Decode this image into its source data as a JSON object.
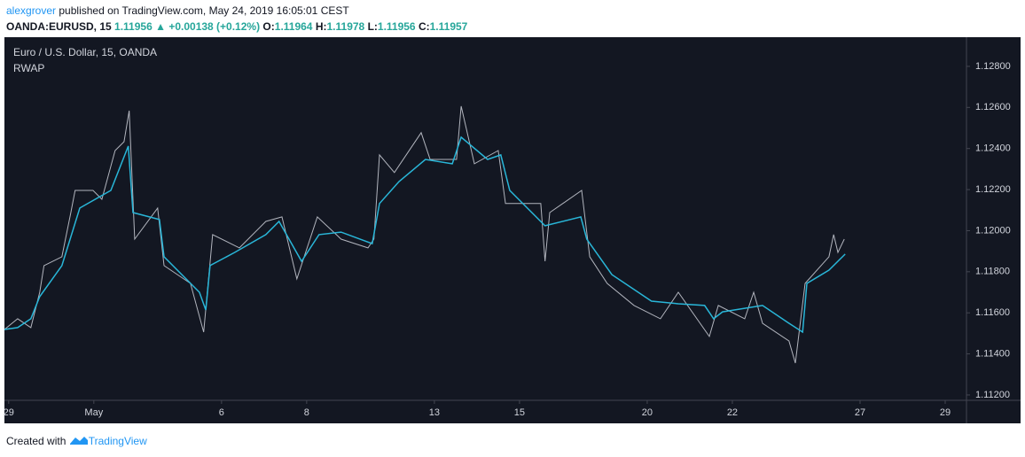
{
  "header": {
    "author": "alexgrover",
    "published": "published on TradingView.com, May 24, 2019 16:05:01 CEST"
  },
  "quote": {
    "symbol": "OANDA:EURUSD, 15",
    "last": "1.11956",
    "change": "+0.00138 (+0.12%)",
    "ohlc": [
      {
        "label": "O:",
        "value": "1.11964"
      },
      {
        "label": "H:",
        "value": "1.11978"
      },
      {
        "label": "L:",
        "value": "1.11956"
      },
      {
        "label": "C:",
        "value": "1.11957"
      }
    ]
  },
  "footer": {
    "created": "Created with",
    "brand": "TradingView"
  },
  "chart_data": {
    "type": "line",
    "title": "Euro / U.S. Dollar, 15, OANDA",
    "xlim": [
      -0.1,
      22.5
    ],
    "ylim": [
      1.11174,
      1.12942
    ],
    "xticks": [
      {
        "value": 0,
        "label": "29"
      },
      {
        "value": 2,
        "label": "May"
      },
      {
        "value": 5,
        "label": "6"
      },
      {
        "value": 7,
        "label": "8"
      },
      {
        "value": 10,
        "label": "13"
      },
      {
        "value": 12,
        "label": "15"
      },
      {
        "value": 15,
        "label": "20"
      },
      {
        "value": 17,
        "label": "22"
      },
      {
        "value": 20,
        "label": "27"
      },
      {
        "value": 22,
        "label": "29"
      }
    ],
    "yticks": [
      {
        "value": 1.112,
        "label": "1.11200"
      },
      {
        "value": 1.114,
        "label": "1.11400"
      },
      {
        "value": 1.116,
        "label": "1.11600"
      },
      {
        "value": 1.118,
        "label": "1.11800"
      },
      {
        "value": 1.12,
        "label": "1.12000"
      },
      {
        "value": 1.122,
        "label": "1.12200"
      },
      {
        "value": 1.124,
        "label": "1.12400"
      },
      {
        "value": 1.126,
        "label": "1.12600"
      },
      {
        "value": 1.128,
        "label": "1.12800"
      }
    ],
    "series": [
      {
        "color": "#b2b5be",
        "x": [
          -0.1,
          0.21,
          0.52,
          0.73,
          0.83,
          1.25,
          1.46,
          1.56,
          1.98,
          2.19,
          2.5,
          2.71,
          2.83,
          2.96,
          3.5,
          3.65,
          4.27,
          4.58,
          4.79,
          5.42,
          6.04,
          6.42,
          6.77,
          7.25,
          7.81,
          8.44,
          8.58,
          8.71,
          9.06,
          9.69,
          9.9,
          10.52,
          10.63,
          10.94,
          11.5,
          11.67,
          12.5,
          12.6,
          12.71,
          13.46,
          13.65,
          14.06,
          14.69,
          15.31,
          15.73,
          16.46,
          16.67,
          17.29,
          17.5,
          17.71,
          18.33,
          18.48,
          18.71,
          19.27,
          19.38,
          19.48,
          19.63
        ],
        "values": [
          1.11519,
          1.11571,
          1.11528,
          1.117,
          1.1183,
          1.11873,
          1.12088,
          1.12196,
          1.12196,
          1.12153,
          1.1239,
          1.12433,
          1.12584,
          1.11959,
          1.1211,
          1.1183,
          1.11743,
          1.11506,
          1.11981,
          1.11916,
          1.12045,
          1.12067,
          1.11765,
          1.12067,
          1.11959,
          1.11916,
          1.11959,
          1.12369,
          1.12283,
          1.12477,
          1.12347,
          1.12347,
          1.12606,
          1.12326,
          1.1239,
          1.12132,
          1.12132,
          1.11851,
          1.12088,
          1.12196,
          1.11873,
          1.11743,
          1.11636,
          1.11571,
          1.117,
          1.11485,
          1.11636,
          1.11571,
          1.117,
          1.11549,
          1.11463,
          1.11355,
          1.11743,
          1.11873,
          1.11981,
          1.11894,
          1.11959
        ]
      },
      {
        "name": "RWAP",
        "color": "#29b6d8",
        "x": [
          -0.1,
          0.21,
          0.52,
          0.73,
          1.25,
          1.67,
          2.4,
          2.81,
          2.92,
          3.54,
          3.65,
          4.48,
          4.63,
          4.73,
          5.31,
          6.04,
          6.35,
          6.88,
          7.29,
          7.81,
          8.54,
          8.71,
          9.17,
          9.79,
          10.42,
          10.63,
          11.25,
          11.56,
          11.77,
          12.6,
          13.44,
          13.58,
          14.17,
          15.1,
          15.73,
          16.35,
          16.56,
          16.77,
          17.71,
          18.33,
          18.65,
          18.75,
          19.27,
          19.65
        ],
        "values": [
          1.11519,
          1.11528,
          1.11571,
          1.11679,
          1.1183,
          1.1211,
          1.12196,
          1.12412,
          1.12088,
          1.12054,
          1.11873,
          1.117,
          1.11614,
          1.1183,
          1.11894,
          1.11981,
          1.12045,
          1.11851,
          1.11981,
          1.11993,
          1.11937,
          1.12132,
          1.12239,
          1.12347,
          1.12326,
          1.12455,
          1.12347,
          1.12369,
          1.12196,
          1.12024,
          1.12067,
          1.11959,
          1.11786,
          1.11657,
          1.11644,
          1.11636,
          1.11571,
          1.11605,
          1.11636,
          1.11549,
          1.11506,
          1.11743,
          1.11808,
          1.11886
        ]
      }
    ]
  }
}
